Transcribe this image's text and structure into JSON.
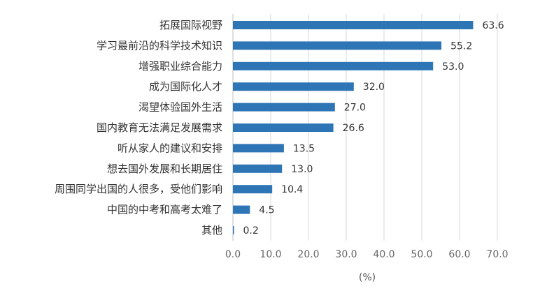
{
  "chart_data": {
    "type": "bar",
    "orientation": "horizontal",
    "categories": [
      "拓展国际视野",
      "学习最前沿的科学技术知识",
      "增强职业综合能力",
      "成为国际化人才",
      "渴望体验国外生活",
      "国内教育无法满足发展需求",
      "听从家人的建议和安排",
      "想去国外发展和长期居住",
      "周围同学出国的人很多，受他们影响",
      "中国的中考和高考太难了",
      "其他"
    ],
    "values": [
      63.6,
      55.2,
      53.0,
      32.0,
      27.0,
      26.6,
      13.5,
      13.0,
      10.4,
      4.5,
      0.2
    ],
    "value_labels": [
      "63.6",
      "55.2",
      "53.0",
      "32.0",
      "27.0",
      "26.6",
      "13.5",
      "13.0",
      "10.4",
      "4.5",
      "0.2"
    ],
    "xlim": [
      0,
      70
    ],
    "xticks": [
      "0.0",
      "10.0",
      "20.0",
      "30.0",
      "40.0",
      "50.0",
      "60.0",
      "70.0"
    ],
    "xlabel": "(%)",
    "grid": "vertical",
    "bar_color": "#2e75b6"
  }
}
